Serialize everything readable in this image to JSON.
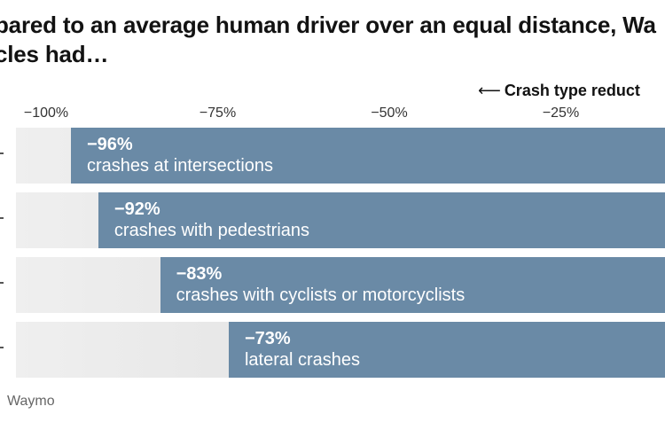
{
  "header": {
    "title_line1": "pared to an average human driver over an equal distance, Wa",
    "title_line2": "cles had…",
    "reduction_arrow": "⟵",
    "reduction_label": "Crash type reduct"
  },
  "source": "Waymo",
  "chart_data": {
    "type": "bar",
    "orientation": "horizontal",
    "title": "pared to an average human driver over an equal distance, Wa cles had…",
    "xlabel": "Crash type reduct",
    "xlim": [
      -100,
      0
    ],
    "x_ticks": [
      -100,
      -75,
      -50,
      -25
    ],
    "x_tick_labels": [
      "−100%",
      "−75%",
      "−50%",
      "−25%"
    ],
    "categories": [
      "crashes at intersections",
      "crashes with pedestrians",
      "crashes with cyclists or motorcyclists",
      "lateral crashes"
    ],
    "values": [
      -96,
      -92,
      -83,
      -73
    ],
    "value_labels": [
      "−96%",
      "−92%",
      "−83%",
      "−73%"
    ],
    "bar_color": "#6a8aa6",
    "track_color": "#e6e6e6"
  }
}
